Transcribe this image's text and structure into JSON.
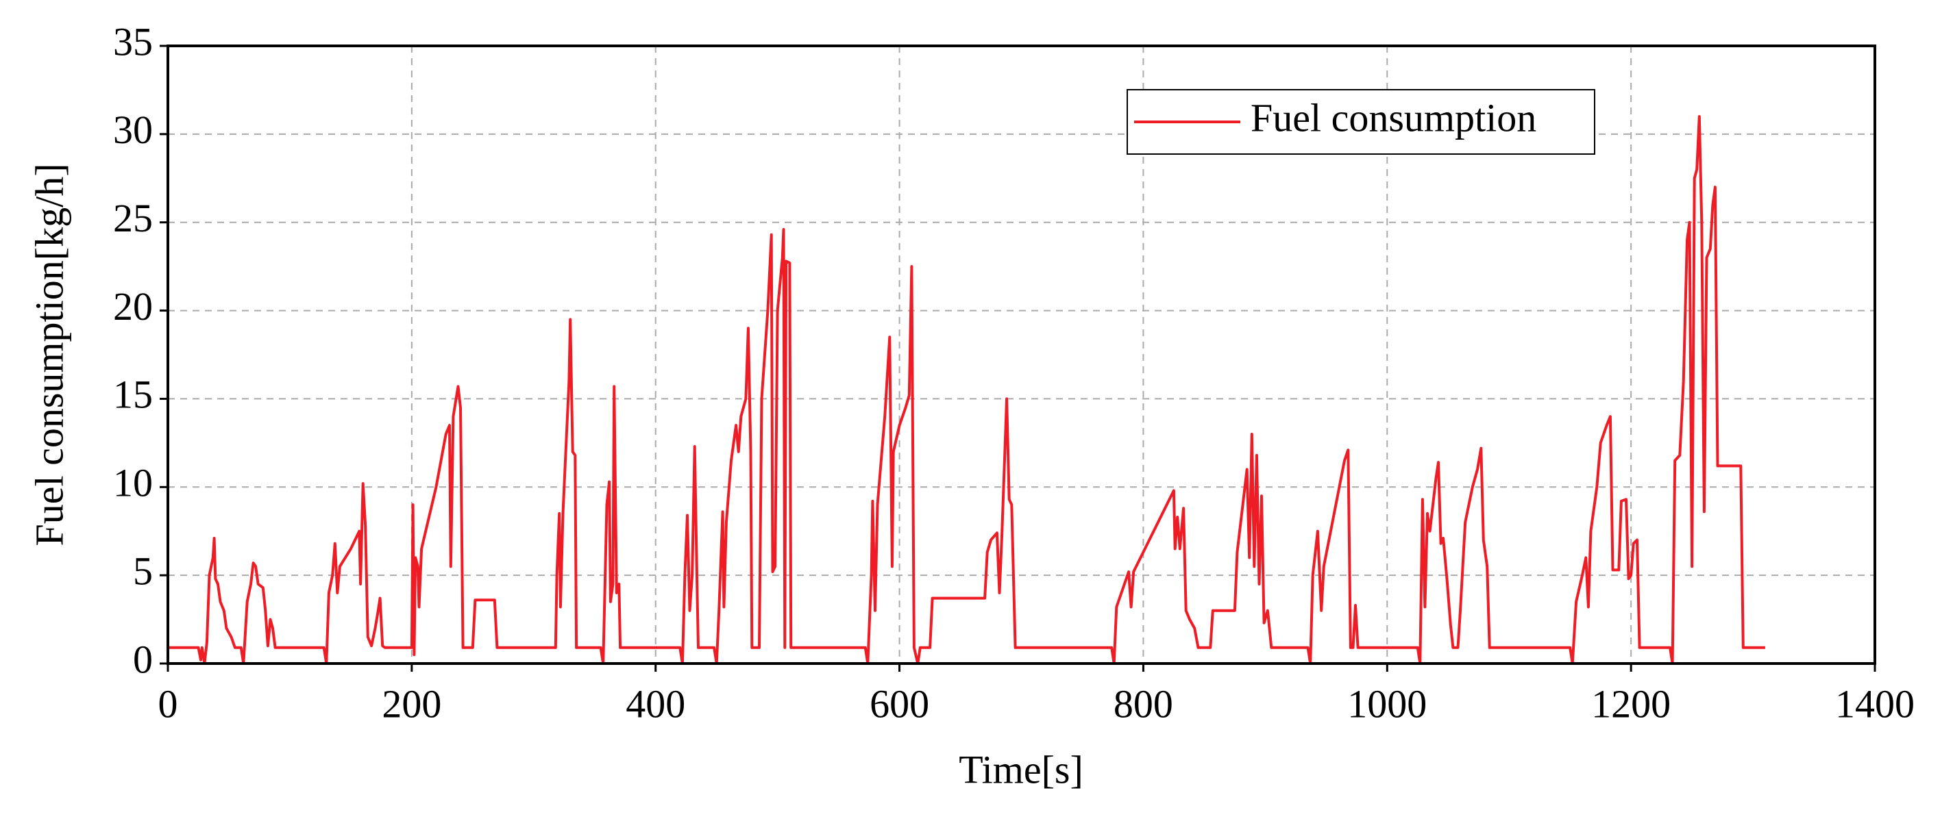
{
  "chart_data": {
    "type": "line",
    "xlabel": "Time[s]",
    "ylabel": "Fuel consumption[kg/h]",
    "xlim": [
      0,
      1400
    ],
    "xticks": [
      0,
      200,
      400,
      600,
      800,
      1000,
      1200,
      1400
    ],
    "ylim": [
      0,
      35
    ],
    "yticks": [
      0,
      5,
      10,
      15,
      20,
      25,
      30,
      35
    ],
    "grid": true,
    "legend": "upper right",
    "x": [
      0,
      25,
      27,
      28,
      30,
      32,
      34,
      37,
      38,
      39,
      41,
      43,
      46,
      48,
      52,
      55,
      60,
      62,
      65,
      68,
      70,
      72,
      74,
      78,
      80,
      82,
      84,
      86,
      88,
      128,
      130,
      132,
      135,
      137,
      139,
      141,
      150,
      157,
      158,
      160,
      162,
      164,
      167,
      170,
      172,
      174,
      176,
      178,
      200,
      201,
      202,
      203,
      205,
      206,
      208,
      220,
      228,
      231,
      232,
      234,
      238,
      240,
      242,
      250,
      252,
      268,
      270,
      318,
      319,
      321,
      322,
      324,
      327,
      329,
      330,
      332,
      334,
      335,
      355,
      357,
      360,
      362,
      363,
      365,
      366,
      368,
      370,
      371,
      420,
      422,
      424,
      426,
      428,
      430,
      432,
      434,
      435,
      448,
      450,
      452,
      455,
      456,
      458,
      462,
      466,
      468,
      470,
      474,
      476,
      478,
      479,
      485,
      487,
      492,
      495,
      496,
      498,
      500,
      504,
      505,
      506,
      507,
      510,
      511,
      572,
      574,
      577,
      578,
      580,
      582,
      588,
      592,
      594,
      595,
      600,
      605,
      608,
      610,
      612,
      615,
      617,
      625,
      627,
      670,
      672,
      675,
      680,
      682,
      684,
      688,
      690,
      692,
      695,
      774,
      776,
      778,
      788,
      790,
      792,
      825,
      826,
      828,
      830,
      833,
      835,
      838,
      842,
      845,
      855,
      857,
      875,
      877,
      885,
      887,
      889,
      891,
      893,
      895,
      897,
      899,
      902,
      905,
      935,
      937,
      939,
      943,
      946,
      948,
      965,
      968,
      970,
      972,
      974,
      976,
      1025,
      1027,
      1029,
      1031,
      1033,
      1035,
      1040,
      1042,
      1044,
      1046,
      1049,
      1052,
      1054,
      1058,
      1060,
      1064,
      1070,
      1074,
      1077,
      1079,
      1082,
      1084,
      1150,
      1152,
      1155,
      1160,
      1163,
      1165,
      1167,
      1172,
      1175,
      1180,
      1183,
      1185,
      1190,
      1192,
      1196,
      1198,
      1200,
      1202,
      1205,
      1207,
      1232,
      1234,
      1236,
      1240,
      1243,
      1246,
      1248,
      1250,
      1252,
      1254,
      1256,
      1258,
      1260,
      1262,
      1265,
      1267,
      1269,
      1271,
      1290,
      1292,
      1310
    ],
    "series": [
      {
        "name": "Fuel consumption",
        "color": "#ee1c25",
        "values": [
          0.9,
          0.9,
          0.2,
          0.9,
          0,
          1.2,
          5,
          6,
          7.1,
          4.8,
          4.5,
          3.5,
          3,
          2,
          1.5,
          0.9,
          0.9,
          0,
          3.5,
          4.5,
          5.7,
          5.5,
          4.5,
          4.3,
          3,
          1,
          2.5,
          2,
          0.9,
          0.9,
          0,
          4,
          5,
          6.8,
          4,
          5.5,
          6.5,
          7.5,
          4.5,
          10.2,
          7.8,
          1.5,
          1,
          2,
          2.8,
          3.7,
          1,
          0.9,
          0.9,
          9,
          0.5,
          6,
          5.5,
          3.2,
          6.5,
          10,
          13,
          13.5,
          5.5,
          14,
          15.7,
          14.5,
          0.9,
          0.9,
          3.6,
          3.6,
          0.9,
          0.9,
          5,
          8.5,
          3.2,
          8.5,
          13,
          16,
          19.5,
          12,
          11.8,
          0.9,
          0.9,
          0,
          9,
          10.3,
          3.5,
          4.5,
          15.7,
          4,
          4.5,
          0.9,
          0.9,
          0,
          5,
          8.4,
          3,
          5,
          12.3,
          4.5,
          0.9,
          0.9,
          0,
          3,
          8.6,
          3.2,
          8,
          11.5,
          13.5,
          12,
          14,
          15,
          19,
          12,
          0.9,
          0.9,
          15,
          20,
          24.3,
          5.2,
          5.5,
          20,
          23,
          24.6,
          0.9,
          22.8,
          22.7,
          0.9,
          0.9,
          0,
          5,
          9.2,
          3,
          9,
          14,
          18.5,
          5.5,
          12,
          13.5,
          14.5,
          15.2,
          22.5,
          0.9,
          0,
          0.9,
          0.9,
          3.7,
          3.7,
          6.3,
          7,
          7.4,
          4,
          7.2,
          15,
          9.3,
          9,
          0.9,
          0.9,
          0,
          3.2,
          5.2,
          3.2,
          5.2,
          9.8,
          6.5,
          8.3,
          6.5,
          8.8,
          3,
          2.5,
          2,
          0.9,
          0.9,
          3,
          3,
          6.3,
          11,
          6,
          13,
          5.5,
          11.8,
          4.5,
          9.5,
          2.3,
          3,
          0.9,
          0.9,
          0,
          5,
          7.5,
          3,
          5.5,
          11.5,
          12.1,
          0.9,
          0.9,
          3.3,
          0.9,
          0.9,
          0,
          9.3,
          3.2,
          8.5,
          7.5,
          10.5,
          11.4,
          6.8,
          7.1,
          4.8,
          2.2,
          0.9,
          0.9,
          3,
          8,
          10,
          11,
          12.2,
          7,
          5.5,
          0.9,
          0.9,
          0,
          3.5,
          5,
          6,
          3.2,
          7.5,
          10,
          12.5,
          13.5,
          14,
          5.3,
          5.3,
          9.2,
          9.3,
          4.8,
          5,
          6.8,
          7,
          0.9,
          0.9,
          0,
          11.5,
          11.8,
          16,
          24,
          25,
          5.5,
          27.5,
          28,
          31,
          25,
          8.6,
          23,
          23.5,
          26,
          27,
          11.2,
          11.2,
          0.9,
          0.9
        ]
      }
    ]
  }
}
